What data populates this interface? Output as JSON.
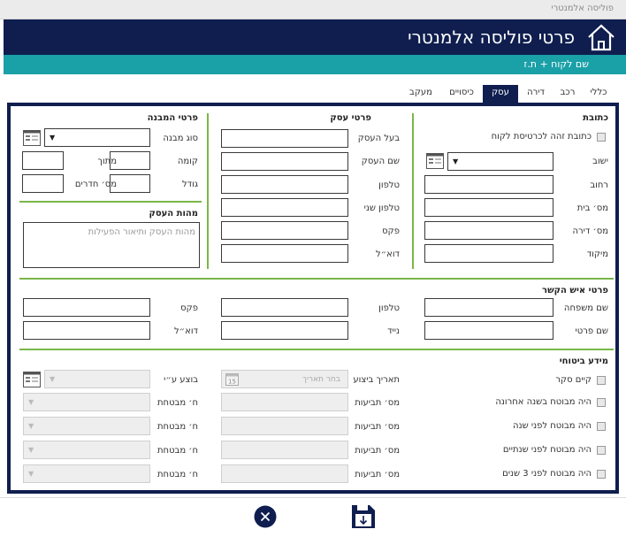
{
  "window": {
    "title": "פוליסה אלמנטרי"
  },
  "header": {
    "title": "פרטי פוליסה אלמנטרי",
    "home_icon": "home-icon"
  },
  "customer_bar": {
    "text": "שם לקוח + ת.ז"
  },
  "tabs": [
    {
      "label": "כללי"
    },
    {
      "label": "רכב"
    },
    {
      "label": "דירה"
    },
    {
      "label": "עסק",
      "active": true
    },
    {
      "label": "כיסויים"
    },
    {
      "label": "מעקב"
    }
  ],
  "address": {
    "title": "כתובת",
    "same_as_client_label": "כתובת זהה לכרטיסת לקוח",
    "fields": {
      "city": "ישוב",
      "street": "רחוב",
      "house_no": "מס׳ בית",
      "apartment_no": "מס׳ דירה",
      "zip": "מיקוד"
    }
  },
  "business": {
    "title": "פרטי עסק",
    "fields": {
      "owner": "בעל העסק",
      "name": "שם העסק",
      "phone": "טלפון",
      "phone2": "טלפון שני",
      "fax": "פקס",
      "email": "דוא״ל"
    }
  },
  "structure": {
    "title": "פרטי המבנה",
    "type_label": "סוג מבנה",
    "floor_label": "קומה",
    "of_label": "מתוך",
    "size_label": "גודל",
    "rooms_label": "מס׳ חדרים"
  },
  "business_nature": {
    "title": "מהות העסק",
    "placeholder": "מהות העסק ותיאור הפעילות"
  },
  "contact": {
    "title": "פרטי איש הקשר",
    "last_name": "שם משפחה",
    "first_name": "שם פרטי",
    "phone": "טלפון",
    "mobile": "נייד",
    "fax": "פקס",
    "email": "דוא״ל"
  },
  "insurance": {
    "title": "מידע ביטוחי",
    "checks": [
      "קיים סקר",
      "היה מבוטח בשנה אחרונה",
      "היה מבוטח לפני שנה",
      "היה מבוטח לפני שנתיים",
      "היה מבוטח לפני 3 שנים"
    ],
    "date_label": "תאריך ביצוע",
    "date_placeholder": "בחר תאריך",
    "calendar_day": "15",
    "done_by_label": "בוצע ע״י",
    "claims_label": "מס׳ תביעות",
    "insurer_label": "ח׳ מבטחת"
  },
  "footer": {
    "cancel_icon": "close-icon",
    "save_icon": "save-icon"
  },
  "colors": {
    "navy": "#0f1e4f",
    "teal": "#1aa0a7",
    "green": "#7ab648"
  }
}
